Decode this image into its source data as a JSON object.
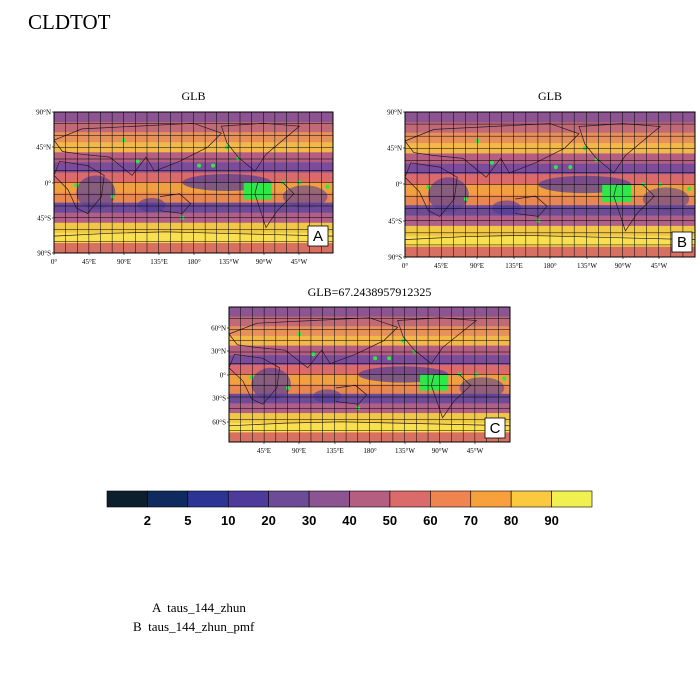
{
  "figure": {
    "title": "CLDTOT"
  },
  "panels": [
    {
      "id": "A",
      "title": "GLB",
      "label": "A",
      "y_ticks": [
        "90°N",
        "45°N",
        "0°",
        "45°S",
        "90°S"
      ],
      "x_ticks": [
        "0°",
        "45°E",
        "90°E",
        "135°E",
        "180°",
        "135°W",
        "90°W",
        "45°W"
      ]
    },
    {
      "id": "B",
      "title": "GLB",
      "label": "B",
      "y_ticks": [
        "90°N",
        "45°N",
        "0°",
        "45°S",
        "90°S"
      ],
      "x_ticks": [
        "0°",
        "45°E",
        "90°E",
        "135°E",
        "180°",
        "135°W",
        "90°W",
        "45°W"
      ]
    },
    {
      "id": "C",
      "title": "GLB=67.2438957912325",
      "label": "C",
      "y_ticks": [
        "60°N",
        "30°N",
        "0°",
        "30°S",
        "60°S"
      ],
      "x_ticks": [
        "45°E",
        "90°E",
        "135°E",
        "180°",
        "135°W",
        "90°W",
        "45°W"
      ]
    }
  ],
  "colorbar": {
    "colors": [
      "#0b1f2c",
      "#0f2a5e",
      "#2c3594",
      "#4d3a9a",
      "#6e4b96",
      "#8c5490",
      "#b45f82",
      "#db6a6a",
      "#f08450",
      "#f8a03b",
      "#fbc93e",
      "#f0f050"
    ],
    "labels": [
      "2",
      "5",
      "10",
      "20",
      "30",
      "40",
      "50",
      "60",
      "70",
      "80",
      "90"
    ]
  },
  "legend": [
    "A  taus_144_zhun",
    "B  taus_144_zhun_pmf"
  ]
}
